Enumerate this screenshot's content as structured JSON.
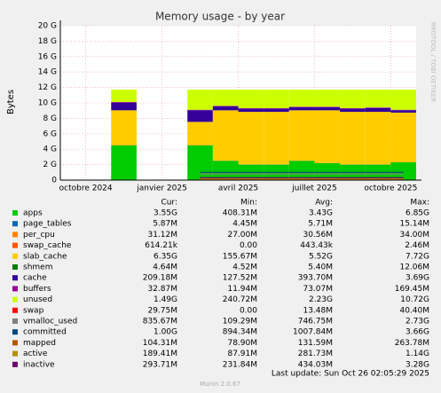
{
  "chart_data": {
    "type": "stacked-area",
    "title": "Memory usage - by year",
    "y_label": "Bytes",
    "side_text": "RRDTOOL / TOBI OETIKER",
    "x": [
      "2024-10",
      "2024-11",
      "2024-12",
      "2025-01",
      "2025-02",
      "2025-03",
      "2025-04",
      "2025-05",
      "2025-06",
      "2025-07",
      "2025-08",
      "2025-09",
      "2025-10"
    ],
    "xlim": [
      "2024-09",
      "2025-11"
    ],
    "xticks": [
      {
        "value": "2024-10",
        "label": "octobre 2024"
      },
      {
        "value": "2025-01",
        "label": "janvier 2025"
      },
      {
        "value": "2025-04",
        "label": "avril 2025"
      },
      {
        "value": "2025-07",
        "label": "juillet 2025"
      },
      {
        "value": "2025-10",
        "label": "octobre 2025"
      }
    ],
    "ylim": [
      0,
      20
    ],
    "yticks": [
      0,
      {
        "value": 2,
        "label": "2 G"
      },
      {
        "value": 4,
        "label": "4 G"
      },
      {
        "value": 6,
        "label": "6 G"
      },
      {
        "value": 8,
        "label": "8 G"
      },
      {
        "value": 10,
        "label": "10 G"
      },
      {
        "value": 12,
        "label": "12 G"
      },
      {
        "value": 14,
        "label": "14 G"
      },
      {
        "value": 16,
        "label": "16 G"
      },
      {
        "value": 18,
        "label": "18 G"
      },
      {
        "value": 20,
        "label": "20 G"
      }
    ],
    "grid": true,
    "legend_headers": [
      "Cur:",
      "Min:",
      "Avg:",
      "Max:"
    ],
    "series": [
      {
        "name": "apps",
        "color": "#00cc00",
        "style": "area",
        "cur": "3.55G",
        "min": "408.31M",
        "avg": "3.43G",
        "max": "6.85G",
        "values": [
          null,
          4.5,
          null,
          null,
          4.5,
          2.5,
          2.0,
          2.0,
          2.5,
          2.2,
          2.0,
          2.0,
          2.3
        ]
      },
      {
        "name": "page_tables",
        "color": "#0066b3",
        "style": "area",
        "cur": "5.87M",
        "min": "4.45M",
        "avg": "5.71M",
        "max": "15.14M",
        "values": [
          null,
          0.006,
          null,
          null,
          0.006,
          0.006,
          0.006,
          0.006,
          0.006,
          0.006,
          0.006,
          0.006,
          0.006
        ]
      },
      {
        "name": "per_cpu",
        "color": "#ff8000",
        "style": "area",
        "cur": "31.12M",
        "min": "27.00M",
        "avg": "30.56M",
        "max": "34.00M",
        "values": [
          null,
          0.03,
          null,
          null,
          0.03,
          0.03,
          0.03,
          0.03,
          0.03,
          0.03,
          0.03,
          0.03,
          0.03
        ]
      },
      {
        "name": "swap_cache",
        "color": "#ff5500",
        "style": "area",
        "cur": "614.21k",
        "min": "0.00",
        "avg": "443.43k",
        "max": "2.46M",
        "values": [
          null,
          0.0005,
          null,
          null,
          0.0005,
          0.0005,
          0.0005,
          0.0005,
          0.0005,
          0.0005,
          0.0005,
          0.0005,
          0.0005
        ]
      },
      {
        "name": "slab_cache",
        "color": "#ffcc00",
        "style": "area",
        "cur": "6.35G",
        "min": "155.67M",
        "avg": "5.52G",
        "max": "7.72G",
        "values": [
          null,
          4.5,
          null,
          null,
          3.0,
          6.5,
          6.8,
          6.8,
          6.5,
          6.8,
          6.8,
          6.8,
          6.4
        ]
      },
      {
        "name": "shmem",
        "color": "#008000",
        "style": "area",
        "cur": "4.64M",
        "min": "4.52M",
        "avg": "5.40M",
        "max": "12.06M",
        "values": [
          null,
          0.005,
          null,
          null,
          0.005,
          0.005,
          0.005,
          0.005,
          0.005,
          0.005,
          0.005,
          0.005,
          0.005
        ]
      },
      {
        "name": "cache",
        "color": "#330099",
        "style": "area",
        "cur": "209.18M",
        "min": "127.52M",
        "avg": "393.70M",
        "max": "3.69G",
        "values": [
          null,
          1.0,
          null,
          null,
          1.5,
          0.5,
          0.4,
          0.4,
          0.4,
          0.4,
          0.4,
          0.5,
          0.3
        ]
      },
      {
        "name": "buffers",
        "color": "#990099",
        "style": "area",
        "cur": "32.87M",
        "min": "11.94M",
        "avg": "73.07M",
        "max": "169.45M",
        "values": [
          null,
          0.07,
          null,
          null,
          0.07,
          0.07,
          0.07,
          0.07,
          0.07,
          0.07,
          0.07,
          0.07,
          0.07
        ]
      },
      {
        "name": "unused",
        "color": "#ccff00",
        "style": "area",
        "cur": "1.49G",
        "min": "240.72M",
        "avg": "2.23G",
        "max": "10.72G",
        "values": [
          null,
          1.6,
          null,
          null,
          2.6,
          2.1,
          2.4,
          2.4,
          2.2,
          2.2,
          2.4,
          2.3,
          2.6
        ]
      },
      {
        "name": "swap",
        "color": "#ff0000",
        "style": "area",
        "cur": "29.75M",
        "min": "0.00",
        "avg": "13.48M",
        "max": "40.40M",
        "values": [
          null,
          0,
          null,
          null,
          0,
          0,
          0,
          0,
          0,
          0,
          0,
          0,
          0
        ]
      },
      {
        "name": "vmalloc_used",
        "color": "#808080",
        "style": "line",
        "cur": "835.67M",
        "min": "109.29M",
        "avg": "746.75M",
        "max": "2.73G",
        "values": [
          null,
          0.8,
          null,
          null,
          0.8,
          0.8,
          0.8,
          0.8,
          0.8,
          0.8,
          0.8,
          0.8,
          0.8
        ]
      },
      {
        "name": "committed",
        "color": "#00487d",
        "style": "line",
        "cur": "1.00G",
        "min": "894.34M",
        "avg": "1007.84M",
        "max": "3.66G",
        "values": [
          null,
          1.0,
          null,
          null,
          1.0,
          1.0,
          1.0,
          1.0,
          1.0,
          1.0,
          1.0,
          1.0,
          1.0
        ]
      },
      {
        "name": "mapped",
        "color": "#b35a00",
        "style": "line",
        "cur": "104.31M",
        "min": "78.90M",
        "avg": "131.59M",
        "max": "263.78M",
        "values": [
          null,
          0.1,
          null,
          null,
          0.1,
          0.1,
          0.1,
          0.1,
          0.1,
          0.1,
          0.1,
          0.1,
          0.1
        ]
      },
      {
        "name": "active",
        "color": "#b38f00",
        "style": "line",
        "cur": "189.41M",
        "min": "87.91M",
        "avg": "281.73M",
        "max": "1.14G",
        "values": [
          null,
          0.19,
          null,
          null,
          0.19,
          0.19,
          0.19,
          0.19,
          0.19,
          0.19,
          0.19,
          0.19,
          0.19
        ]
      },
      {
        "name": "inactive",
        "color": "#6b006b",
        "style": "line",
        "cur": "293.71M",
        "min": "231.84M",
        "avg": "434.03M",
        "max": "3.28G",
        "values": [
          null,
          0.3,
          null,
          null,
          0.3,
          0.3,
          0.3,
          0.3,
          0.3,
          0.3,
          0.3,
          0.3,
          0.3
        ]
      }
    ],
    "last_update": "Last update: Sun Oct 26 02:05:29 2025",
    "footer": "Munin 2.0.67"
  }
}
